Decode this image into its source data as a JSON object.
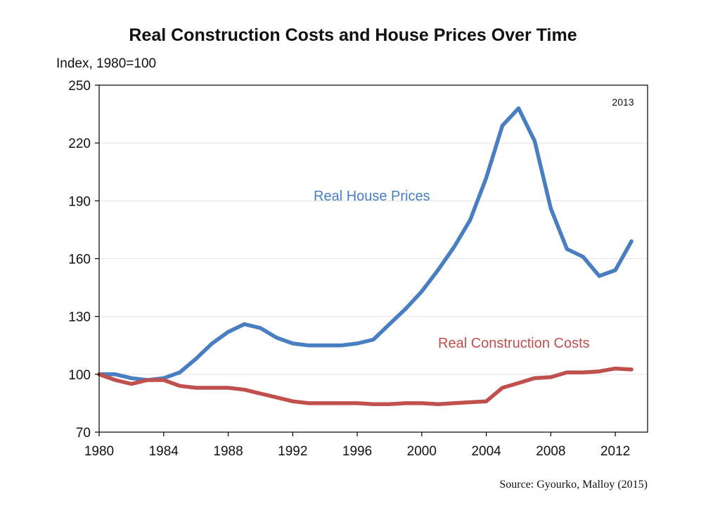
{
  "chart_data": {
    "type": "line",
    "title": "Real Construction Costs and House Prices Over Time",
    "ylabel": "Index, 1980=100",
    "xlabel": "",
    "annotation": "2013",
    "source": "Source: Gyourko, Malloy (2015)",
    "xlim": [
      1980,
      2014
    ],
    "ylim": [
      70,
      250
    ],
    "xticks": [
      1980,
      1984,
      1988,
      1992,
      1996,
      2000,
      2004,
      2008,
      2012
    ],
    "yticks": [
      70,
      100,
      130,
      160,
      190,
      220,
      250
    ],
    "grid": {
      "horizontal": true,
      "vertical": false
    },
    "series": [
      {
        "name": "Real House Prices",
        "color": "#4A7EC2",
        "x": [
          1980,
          1981,
          1982,
          1983,
          1984,
          1985,
          1986,
          1987,
          1988,
          1989,
          1990,
          1991,
          1992,
          1993,
          1994,
          1995,
          1996,
          1997,
          1998,
          1999,
          2000,
          2001,
          2002,
          2003,
          2004,
          2005,
          2006,
          2007,
          2008,
          2009,
          2010,
          2011,
          2012,
          2013
        ],
        "y": [
          100,
          100,
          98,
          97,
          98,
          101,
          108,
          116,
          122,
          126,
          124,
          119,
          116,
          115,
          115,
          115,
          116,
          118,
          126,
          134,
          143,
          154,
          166,
          180,
          202,
          229,
          238,
          221,
          186,
          165,
          161,
          151,
          154,
          169
        ]
      },
      {
        "name": "Real Construction Costs",
        "color": "#C0504D",
        "x": [
          1980,
          1981,
          1982,
          1983,
          1984,
          1985,
          1986,
          1987,
          1988,
          1989,
          1990,
          1991,
          1992,
          1993,
          1994,
          1995,
          1996,
          1997,
          1998,
          1999,
          2000,
          2001,
          2002,
          2003,
          2004,
          2005,
          2006,
          2007,
          2008,
          2009,
          2010,
          2011,
          2012,
          2013
        ],
        "y": [
          100,
          97,
          95,
          97,
          97,
          94,
          93,
          93,
          93,
          92,
          90,
          88,
          86,
          85,
          85,
          85,
          85,
          84.5,
          84.5,
          85,
          85,
          84.5,
          85,
          85.5,
          86,
          93,
          95.5,
          98,
          98.5,
          101,
          101,
          101.5,
          103,
          102.5
        ]
      }
    ]
  }
}
